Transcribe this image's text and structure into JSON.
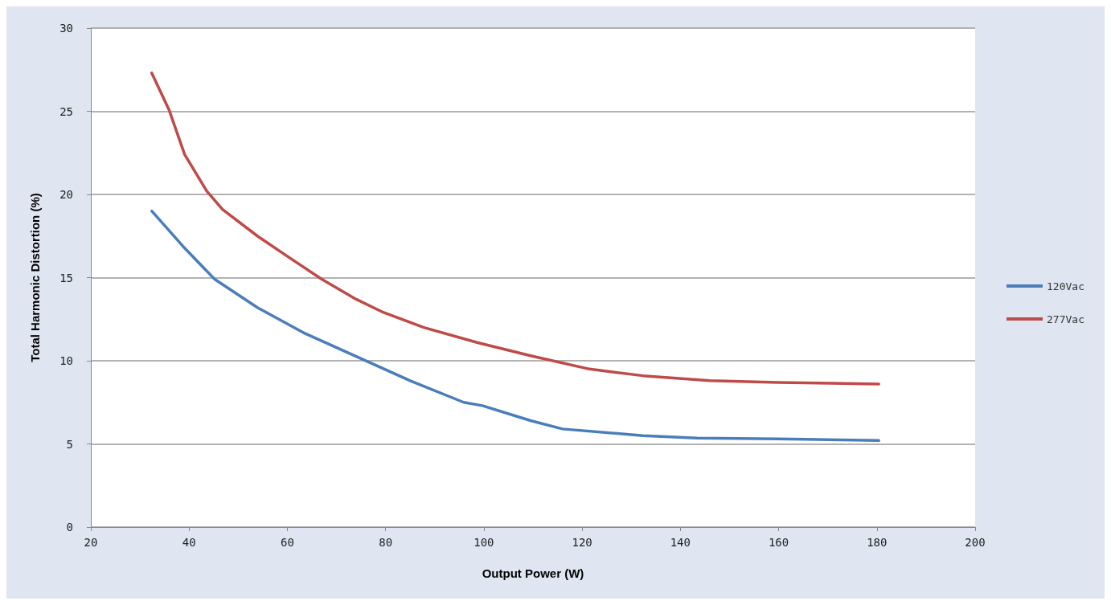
{
  "chart_data": {
    "type": "line",
    "xlabel": "Output Power (W)",
    "ylabel": "Total Harmonic Distortion (%)",
    "xlim": [
      20,
      200
    ],
    "xticks": [
      20,
      40,
      60,
      80,
      100,
      120,
      140,
      160,
      180,
      200
    ],
    "ylim": [
      0,
      30
    ],
    "yticks": [
      0,
      5,
      10,
      15,
      20,
      25,
      30
    ],
    "grid": "y",
    "legend": "right",
    "marker": "none",
    "line_style": "solid",
    "series": [
      {
        "name": "120Vac",
        "color": "#4a7ebb",
        "x": [
          32.4,
          38.7,
          45.2,
          53.9,
          63.2,
          75.2,
          85,
          95.9,
          99.7,
          109.5,
          116,
          132.4,
          143.4,
          159.8,
          180.4
        ],
        "values": [
          19.0,
          16.9,
          14.9,
          13.2,
          11.7,
          10.1,
          8.8,
          7.5,
          7.3,
          6.4,
          5.9,
          5.5,
          5.35,
          5.3,
          5.2
        ]
      },
      {
        "name": "277Vac",
        "color": "#be4b48",
        "x": [
          32.4,
          35.9,
          39.1,
          43.6,
          46.8,
          53.9,
          60.4,
          67,
          74,
          79.6,
          87.8,
          98.6,
          109.5,
          121.5,
          132.4,
          146,
          159.8,
          170.6,
          180.4
        ],
        "values": [
          27.3,
          25.1,
          22.4,
          20.2,
          19.1,
          17.5,
          16.2,
          14.9,
          13.7,
          12.9,
          12.0,
          11.1,
          10.3,
          9.5,
          9.1,
          8.8,
          8.7,
          8.65,
          8.6
        ]
      }
    ]
  }
}
